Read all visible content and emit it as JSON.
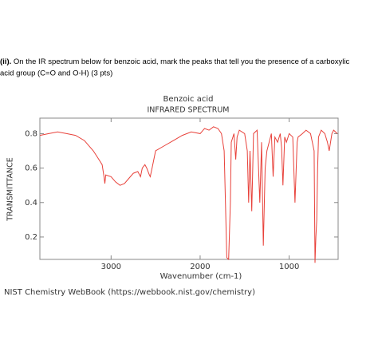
{
  "question": {
    "label": "(ii).",
    "lines": [
      "On the IR spectrum below for benzoic acid, mark the peaks that tell you the presence of a carboxylic",
      "acid group (C=O and O-H) (3 pts)"
    ]
  },
  "chart_data": {
    "type": "line",
    "title": "Benzoic acid",
    "subtitle": "INFRARED SPECTRUM",
    "x_label": "Wavenumber (cm-1)",
    "y_label": "TRANSMITTANCE",
    "x": [
      3800,
      3700,
      3600,
      3500,
      3400,
      3300,
      3200,
      3150,
      3100,
      3080,
      3070,
      3060,
      3000,
      2950,
      2900,
      2850,
      2800,
      2750,
      2700,
      2670,
      2650,
      2620,
      2600,
      2570,
      2560,
      2540,
      2500,
      2400,
      2300,
      2200,
      2100,
      2000,
      1950,
      1900,
      1850,
      1800,
      1760,
      1730,
      1700,
      1680,
      1660,
      1650,
      1620,
      1600,
      1585,
      1560,
      1500,
      1470,
      1455,
      1440,
      1420,
      1400,
      1360,
      1330,
      1310,
      1290,
      1270,
      1250,
      1200,
      1180,
      1160,
      1130,
      1100,
      1085,
      1070,
      1050,
      1030,
      1000,
      960,
      935,
      910,
      900,
      850,
      810,
      760,
      720,
      710,
      700,
      690,
      680,
      670,
      640,
      600,
      570,
      550,
      520,
      500,
      460
    ],
    "series": [
      {
        "name": "Benzoic acid",
        "color": "#e8413a",
        "values": [
          0.79,
          0.8,
          0.81,
          0.8,
          0.79,
          0.76,
          0.7,
          0.66,
          0.62,
          0.55,
          0.51,
          0.56,
          0.55,
          0.52,
          0.5,
          0.51,
          0.54,
          0.57,
          0.58,
          0.55,
          0.6,
          0.62,
          0.6,
          0.56,
          0.55,
          0.6,
          0.7,
          0.73,
          0.76,
          0.79,
          0.81,
          0.8,
          0.83,
          0.82,
          0.84,
          0.83,
          0.8,
          0.7,
          0.08,
          0.07,
          0.4,
          0.75,
          0.8,
          0.65,
          0.78,
          0.82,
          0.8,
          0.7,
          0.4,
          0.7,
          0.35,
          0.8,
          0.82,
          0.4,
          0.75,
          0.15,
          0.6,
          0.7,
          0.8,
          0.55,
          0.78,
          0.75,
          0.8,
          0.72,
          0.5,
          0.78,
          0.75,
          0.8,
          0.78,
          0.4,
          0.75,
          0.78,
          0.8,
          0.82,
          0.8,
          0.7,
          0.05,
          0.2,
          0.3,
          0.6,
          0.78,
          0.82,
          0.8,
          0.75,
          0.7,
          0.8,
          0.82,
          0.8
        ]
      }
    ],
    "xlim": [
      3800,
      450
    ],
    "xticks": [
      3000,
      2000,
      1000
    ],
    "ylim": [
      0.07,
      0.89
    ],
    "yticks": [
      0.2,
      0.4,
      0.6,
      0.8
    ]
  },
  "footer": "NIST Chemistry WebBook (https://webbook.nist.gov/chemistry)"
}
